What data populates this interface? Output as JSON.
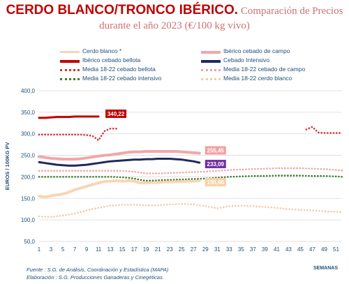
{
  "title": {
    "bold": "CERDO BLANCO/TRONCO IBÉRICO.",
    "rest": " Comparación de Precios",
    "line2": "durante el año 2023 (€/100 kg vivo)"
  },
  "footer": {
    "line1": "Fuente : S.G. de Análisis, Coordinación y Estadística (MAPA)",
    "line2": "Elaboración : S.G. Producciones Ganaderas y Cinegéticas."
  },
  "chart_data": {
    "type": "line",
    "ylabel": "EUROS / 100KG PV",
    "xlabel": "SEMANAS",
    "ylim": [
      50,
      400
    ],
    "yticks": [
      "400,0",
      "350,0",
      "300,0",
      "250,0",
      "200,0",
      "150,0",
      "100,0",
      "50,0"
    ],
    "xticks": [
      "1",
      "3",
      "5",
      "7",
      "9",
      "11",
      "13",
      "15",
      "17",
      "19",
      "21",
      "23",
      "25",
      "27",
      "29",
      "31",
      "33",
      "35",
      "37",
      "39",
      "41",
      "43",
      "45",
      "47",
      "49",
      "51"
    ],
    "grid": true,
    "legend_position": "top",
    "series": [
      {
        "name": "Cerdo blanco *",
        "color": "#f8d5b4",
        "style": "solid",
        "x": [
          1,
          2,
          3,
          4,
          5,
          6,
          7,
          8,
          9,
          10,
          11,
          12,
          13,
          14,
          15,
          16,
          17,
          18,
          19,
          20,
          21,
          22,
          23,
          24,
          25,
          26,
          27,
          28
        ],
        "y": [
          155,
          153,
          156,
          158,
          160,
          164,
          170,
          174,
          178,
          182,
          186,
          189,
          190,
          191,
          190,
          191,
          190,
          186,
          186,
          187,
          187,
          188,
          188,
          189,
          189,
          190,
          190,
          191
        ]
      },
      {
        "name": "Ibérico cebado de campo",
        "color": "#f2a7a7",
        "style": "solid",
        "x": [
          1,
          2,
          3,
          4,
          5,
          6,
          7,
          8,
          9,
          10,
          11,
          12,
          13,
          14,
          15,
          16,
          17,
          18,
          19,
          20,
          21,
          22,
          23,
          24,
          25,
          26,
          27,
          28
        ],
        "y": [
          247,
          245,
          243,
          242,
          241,
          241,
          241,
          242,
          244,
          246,
          248,
          250,
          251,
          253,
          255,
          257,
          258,
          258,
          259,
          259,
          259,
          259,
          259,
          259,
          258,
          257,
          256,
          255
        ]
      },
      {
        "name": "Ibérico cebado bellota",
        "color": "#c00000",
        "style": "solid",
        "x": [
          1,
          2,
          3,
          4,
          5,
          6,
          7,
          8,
          9,
          10,
          11
        ],
        "y": [
          337,
          337,
          338,
          339,
          339,
          339,
          340,
          340,
          340,
          340,
          340
        ]
      },
      {
        "name": "Cebado Intensivo",
        "color": "#1f2a5c",
        "style": "solid",
        "x": [
          1,
          2,
          3,
          4,
          5,
          6,
          7,
          8,
          9,
          10,
          11,
          12,
          13,
          14,
          15,
          16,
          17,
          18,
          19,
          20,
          21,
          22,
          23,
          24,
          25,
          26,
          27,
          28
        ],
        "y": [
          234,
          232,
          230,
          228,
          227,
          226,
          226,
          227,
          228,
          230,
          232,
          234,
          236,
          237,
          238,
          239,
          240,
          240,
          241,
          241,
          242,
          242,
          242,
          241,
          240,
          238,
          236,
          233
        ]
      },
      {
        "name": "Media 18-22 cebado bellota",
        "color": "#d93030",
        "style": "dotted",
        "x": [
          1,
          2,
          3,
          4,
          5,
          6,
          7,
          8,
          9,
          10,
          11,
          12,
          13,
          14,
          46,
          47,
          48,
          49,
          50,
          51,
          52
        ],
        "y": [
          298,
          298,
          298,
          298,
          298,
          298,
          298,
          298,
          297,
          295,
          285,
          306,
          312,
          312,
          310,
          316,
          303,
          302,
          302,
          302,
          302
        ]
      },
      {
        "name": "Media 18-22 cebado de campo",
        "color": "#f4a0a0",
        "style": "dotted",
        "x": [
          1,
          3,
          5,
          7,
          9,
          11,
          13,
          15,
          17,
          18,
          19,
          21,
          23,
          25,
          27,
          29,
          31,
          33,
          35,
          37,
          39,
          41,
          43,
          45,
          47,
          49,
          51,
          52
        ],
        "y": [
          214,
          214,
          214,
          214,
          214,
          214,
          214,
          214,
          212,
          210,
          208,
          208,
          209,
          210,
          211,
          212,
          214,
          216,
          217,
          218,
          219,
          220,
          220,
          220,
          219,
          218,
          216,
          215
        ]
      },
      {
        "name": "Media 18-22 cebado intensivo",
        "color": "#3a7d2a",
        "style": "dotted",
        "x": [
          1,
          3,
          5,
          7,
          9,
          11,
          13,
          15,
          17,
          18,
          19,
          21,
          23,
          25,
          27,
          29,
          31,
          33,
          35,
          37,
          39,
          41,
          43,
          45,
          47,
          49,
          51,
          52
        ],
        "y": [
          200,
          200,
          200,
          200,
          200,
          200,
          200,
          199,
          196,
          193,
          191,
          192,
          193,
          194,
          195,
          196,
          198,
          200,
          201,
          202,
          202,
          203,
          203,
          203,
          202,
          202,
          201,
          200
        ]
      },
      {
        "name": "Media 18-22 cerdo blanco",
        "color": "#f5c9a8",
        "style": "dotted",
        "x": [
          1,
          3,
          5,
          7,
          9,
          11,
          13,
          15,
          17,
          19,
          21,
          23,
          25,
          27,
          29,
          31,
          33,
          35,
          37,
          39,
          41,
          43,
          45,
          47,
          49,
          51,
          52
        ],
        "y": [
          108,
          107,
          110,
          115,
          122,
          128,
          133,
          135,
          135,
          134,
          134,
          136,
          137,
          136,
          132,
          127,
          132,
          133,
          132,
          130,
          128,
          125,
          123,
          122,
          120,
          119,
          118
        ]
      }
    ],
    "data_labels": [
      {
        "text": "340,22",
        "series": "Ibérico cebado bellota",
        "bg": "#c00000",
        "fg": "#ffffff",
        "x": 11,
        "y": 340
      },
      {
        "text": "255,45",
        "series": "Ibérico cebado de campo",
        "bg": "#f2a0a0",
        "fg": "#ffffff",
        "x": 28,
        "y": 255
      },
      {
        "text": "233,09",
        "series": "Cebado Intensivo",
        "bg": "#7030a0",
        "fg": "#ffffff",
        "x": 28,
        "y": 233
      },
      {
        "text": "190,66",
        "series": "Cerdo blanco *",
        "bg": "#f8d0a8",
        "fg": "#ffffff",
        "x": 28,
        "y": 191
      }
    ]
  }
}
